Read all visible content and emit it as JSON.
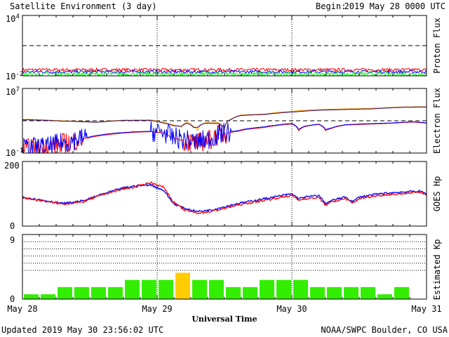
{
  "header": {
    "title": "Satellite Environment (3 day)",
    "begin_label": "Begin:",
    "begin_value": "2019 May 28 0000 UTC"
  },
  "footer": {
    "updated": "Updated 2019 May 30 23:56:02 UTC",
    "credit": "NOAA/SWPC Boulder, CO USA"
  },
  "colors": {
    "red": "#ff0000",
    "blue": "#0000ff",
    "green": "#00ff00",
    "orange": "#ffa500",
    "purple": "#330066",
    "kp_normal": "#33ee00",
    "kp_active": "#ffcc00",
    "frame": "#000000",
    "background": "#ffffff"
  },
  "xaxis": {
    "label": "Universal Time",
    "ticks": [
      "May 28",
      "May 29",
      "May 30",
      "May 31"
    ],
    "range_days": [
      0,
      3
    ]
  },
  "chart_data": [
    {
      "type": "line",
      "panel": "proton",
      "ylabel": "Proton Flux",
      "yscale": "log",
      "ylim": [
        0.01,
        10000
      ],
      "ytick_labels": [
        {
          "base": "10",
          "exp": "4"
        },
        {
          "base": "10",
          "exp": "-2"
        }
      ],
      "threshold": 10,
      "x_range_days": [
        0,
        3
      ],
      "series": [
        {
          "color": "red",
          "level": 0.04,
          "noise": 0.3
        },
        {
          "color": "blue",
          "level": 0.025,
          "noise": 0.3
        },
        {
          "color": "green",
          "level": 0.015,
          "noise": 0.35
        }
      ]
    },
    {
      "type": "line",
      "panel": "electron",
      "ylabel": "Electron Flux",
      "yscale": "log",
      "ylim": [
        0.1,
        10000000
      ],
      "ytick_labels": [
        {
          "base": "10",
          "exp": "7"
        },
        {
          "base": "10",
          "exp": "-1"
        }
      ],
      "threshold": 1000,
      "x_range_days": [
        0,
        3
      ],
      "series": [
        {
          "color": "orange",
          "points": [
            [
              0,
              1500
            ],
            [
              0.05,
              1500
            ],
            [
              0.3,
              1000
            ],
            [
              0.55,
              700
            ],
            [
              0.75,
              1200
            ],
            [
              0.95,
              1300
            ],
            [
              1.05,
              600
            ],
            [
              1.12,
              300
            ],
            [
              1.18,
              150
            ],
            [
              1.22,
              700
            ],
            [
              1.27,
              200
            ],
            [
              1.3,
              60
            ],
            [
              1.35,
              500
            ],
            [
              1.38,
              700
            ],
            [
              1.45,
              600
            ],
            [
              1.5,
              60
            ],
            [
              1.56,
              2000
            ],
            [
              1.62,
              5000
            ],
            [
              1.8,
              7000
            ],
            [
              2.0,
              15000
            ],
            [
              2.2,
              25000
            ],
            [
              2.4,
              30000
            ],
            [
              2.6,
              35000
            ],
            [
              2.8,
              50000
            ],
            [
              2.95,
              55000
            ],
            [
              3.0,
              55000
            ]
          ]
        },
        {
          "color": "purple",
          "points": [
            [
              0,
              1300
            ],
            [
              0.05,
              1300
            ],
            [
              0.3,
              900
            ],
            [
              0.55,
              650
            ],
            [
              0.75,
              1100
            ],
            [
              0.95,
              1100
            ],
            [
              1.05,
              500
            ],
            [
              1.12,
              250
            ],
            [
              1.18,
              200
            ],
            [
              1.22,
              500
            ],
            [
              1.27,
              150
            ],
            [
              1.3,
              150
            ],
            [
              1.35,
              450
            ],
            [
              1.38,
              500
            ],
            [
              1.45,
              450
            ],
            [
              1.5,
              150
            ],
            [
              1.56,
              1800
            ],
            [
              1.62,
              4500
            ],
            [
              1.8,
              6000
            ],
            [
              2.0,
              12000
            ],
            [
              2.2,
              20000
            ],
            [
              2.4,
              25000
            ],
            [
              2.6,
              30000
            ],
            [
              2.8,
              45000
            ],
            [
              2.95,
              50000
            ],
            [
              3.0,
              50000
            ]
          ]
        },
        {
          "color": "red",
          "points": [
            [
              0,
              0.3
            ],
            [
              0.2,
              0.5
            ],
            [
              0.35,
              2
            ],
            [
              0.5,
              8
            ],
            [
              0.65,
              20
            ],
            [
              0.8,
              35
            ],
            [
              0.95,
              45
            ],
            [
              1.05,
              30
            ],
            [
              1.1,
              8
            ],
            [
              1.2,
              3
            ],
            [
              1.3,
              1.5
            ],
            [
              1.4,
              5
            ],
            [
              1.5,
              25
            ],
            [
              1.6,
              50
            ],
            [
              1.8,
              150
            ],
            [
              2.0,
              400
            ],
            [
              2.05,
              60
            ],
            [
              2.1,
              200
            ],
            [
              2.2,
              350
            ],
            [
              2.25,
              60
            ],
            [
              2.3,
              120
            ],
            [
              2.4,
              300
            ],
            [
              2.6,
              400
            ],
            [
              2.75,
              500
            ],
            [
              2.9,
              700
            ],
            [
              3.0,
              500
            ]
          ],
          "noisy_until": 0.45,
          "noisy_from": 1.2,
          "noisy_to": 1.52
        },
        {
          "color": "blue",
          "points": [
            [
              0,
              0.4
            ],
            [
              0.2,
              0.6
            ],
            [
              0.35,
              2.5
            ],
            [
              0.5,
              10
            ],
            [
              0.65,
              25
            ],
            [
              0.8,
              40
            ],
            [
              0.95,
              50
            ],
            [
              1.05,
              35
            ],
            [
              1.1,
              10
            ],
            [
              1.2,
              4
            ],
            [
              1.3,
              2
            ],
            [
              1.4,
              6
            ],
            [
              1.5,
              30
            ],
            [
              1.6,
              60
            ],
            [
              1.8,
              180
            ],
            [
              2.0,
              450
            ],
            [
              2.05,
              80
            ],
            [
              2.1,
              220
            ],
            [
              2.2,
              380
            ],
            [
              2.25,
              80
            ],
            [
              2.3,
              140
            ],
            [
              2.4,
              330
            ],
            [
              2.6,
              450
            ],
            [
              2.75,
              550
            ],
            [
              2.9,
              750
            ],
            [
              3.0,
              550
            ]
          ],
          "noisy_until": 0.48,
          "noisy_from": 0.95,
          "noisy_to": 1.55
        }
      ]
    },
    {
      "type": "line",
      "panel": "hp",
      "ylabel": "GOES Hp",
      "yscale": "linear",
      "ylim": [
        0,
        200
      ],
      "ytick_labels": [
        "200",
        "0"
      ],
      "x_range_days": [
        0,
        3
      ],
      "series": [
        {
          "color": "blue",
          "points": [
            [
              0,
              90
            ],
            [
              0.15,
              80
            ],
            [
              0.3,
              70
            ],
            [
              0.45,
              78
            ],
            [
              0.6,
              100
            ],
            [
              0.75,
              118
            ],
            [
              0.85,
              125
            ],
            [
              0.95,
              128
            ],
            [
              1.05,
              110
            ],
            [
              1.12,
              70
            ],
            [
              1.2,
              55
            ],
            [
              1.3,
              45
            ],
            [
              1.4,
              50
            ],
            [
              1.5,
              60
            ],
            [
              1.6,
              70
            ],
            [
              1.8,
              85
            ],
            [
              2.0,
              100
            ],
            [
              2.05,
              85
            ],
            [
              2.1,
              90
            ],
            [
              2.2,
              95
            ],
            [
              2.25,
              70
            ],
            [
              2.3,
              80
            ],
            [
              2.4,
              90
            ],
            [
              2.45,
              75
            ],
            [
              2.5,
              90
            ],
            [
              2.65,
              100
            ],
            [
              2.8,
              105
            ],
            [
              2.95,
              108
            ],
            [
              3.0,
              100
            ]
          ]
        },
        {
          "color": "red",
          "points": [
            [
              0,
              88
            ],
            [
              0.15,
              78
            ],
            [
              0.3,
              68
            ],
            [
              0.45,
              75
            ],
            [
              0.6,
              98
            ],
            [
              0.75,
              115
            ],
            [
              0.85,
              122
            ],
            [
              0.95,
              135
            ],
            [
              1.05,
              120
            ],
            [
              1.12,
              75
            ],
            [
              1.2,
              50
            ],
            [
              1.3,
              40
            ],
            [
              1.4,
              45
            ],
            [
              1.5,
              55
            ],
            [
              1.6,
              65
            ],
            [
              1.8,
              80
            ],
            [
              2.0,
              95
            ],
            [
              2.05,
              80
            ],
            [
              2.1,
              85
            ],
            [
              2.2,
              88
            ],
            [
              2.25,
              65
            ],
            [
              2.3,
              75
            ],
            [
              2.4,
              85
            ],
            [
              2.45,
              70
            ],
            [
              2.5,
              85
            ],
            [
              2.65,
              95
            ],
            [
              2.8,
              100
            ],
            [
              2.95,
              105
            ],
            [
              3.0,
              98
            ]
          ]
        }
      ]
    },
    {
      "type": "bar",
      "panel": "kp",
      "ylabel": "Estimated Kp",
      "ylim": [
        0,
        9
      ],
      "ytick_labels": [
        "9",
        "0"
      ],
      "bar_hours": 3,
      "values": [
        0.67,
        0.67,
        1.67,
        1.67,
        1.67,
        1.67,
        2.67,
        2.67,
        2.67,
        3.67,
        2.67,
        2.67,
        1.67,
        1.67,
        2.67,
        2.67,
        2.67,
        1.67,
        1.67,
        1.67,
        1.67,
        0.67,
        1.67,
        0
      ],
      "active_threshold": 3.5,
      "dotted_lines": [
        4,
        5,
        6,
        7,
        8
      ]
    }
  ]
}
